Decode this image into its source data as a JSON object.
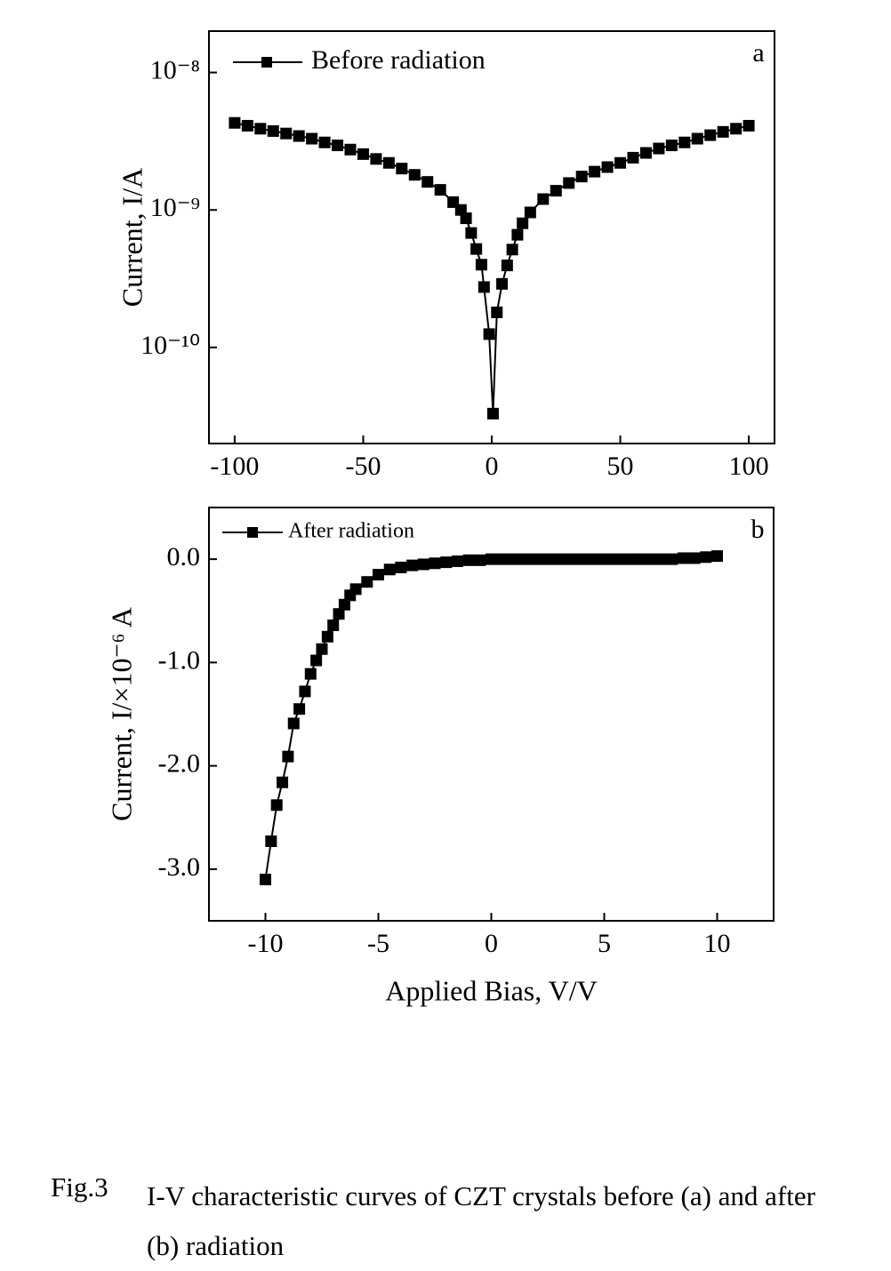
{
  "chart_data": [
    {
      "type": "line",
      "yscale": "log",
      "annotation": "a",
      "xlim": [
        -110,
        110
      ],
      "xticks": [
        -100,
        -50,
        0,
        50,
        100
      ],
      "ylim": [
        2e-11,
        2e-08
      ],
      "yticks": [
        {
          "value": 1e-08,
          "label": "10⁻⁸"
        },
        {
          "value": 1e-09,
          "label": "10⁻⁹"
        },
        {
          "value": 1e-10,
          "label": "10⁻¹⁰"
        }
      ],
      "ylabel": "Current, I/A",
      "legend": "upper left",
      "x": [
        -100,
        -95,
        -90,
        -85,
        -80,
        -75,
        -70,
        -65,
        -60,
        -55,
        -50,
        -45,
        -40,
        -35,
        -30,
        -25,
        -20,
        -15,
        -12,
        -10,
        -8,
        -6,
        -4,
        -3,
        -1,
        0.5,
        2,
        4,
        6,
        8,
        10,
        12,
        15,
        20,
        25,
        30,
        35,
        40,
        45,
        50,
        55,
        60,
        65,
        70,
        75,
        80,
        85,
        90,
        95,
        100
      ],
      "series": [
        {
          "name": "Before radiation",
          "color": "#000000",
          "values": [
            4.3e-09,
            4.1e-09,
            3.9e-09,
            3.75e-09,
            3.6e-09,
            3.45e-09,
            3.3e-09,
            3.1e-09,
            2.95e-09,
            2.75e-09,
            2.55e-09,
            2.35e-09,
            2.2e-09,
            2e-09,
            1.8e-09,
            1.6e-09,
            1.4e-09,
            1.14e-09,
            1e-09,
            8.7e-10,
            6.8e-10,
            5.2e-10,
            4e-10,
            2.75e-10,
            1.25e-10,
            3.3e-11,
            1.8e-10,
            2.9e-10,
            3.95e-10,
            5.15e-10,
            6.6e-10,
            8e-10,
            9.6e-10,
            1.2e-09,
            1.38e-09,
            1.57e-09,
            1.75e-09,
            1.9e-09,
            2.05e-09,
            2.2e-09,
            2.4e-09,
            2.6e-09,
            2.8e-09,
            2.95e-09,
            3.1e-09,
            3.3e-09,
            3.5e-09,
            3.7e-09,
            3.9e-09,
            4.1e-09
          ]
        }
      ]
    },
    {
      "type": "line",
      "annotation": "b",
      "xlim": [
        -12.5,
        12.5
      ],
      "xticks": [
        -10,
        -5,
        0,
        5,
        10
      ],
      "ylim": [
        -3.5,
        0.5
      ],
      "yticks": [
        {
          "value": 0,
          "label": "0.0"
        },
        {
          "value": -1,
          "label": "-1.0"
        },
        {
          "value": -2,
          "label": "-2.0"
        },
        {
          "value": -3,
          "label": "-3.0"
        }
      ],
      "ylabel": "Current, I/×10⁻⁶ A",
      "xlabel": "Applied Bias, V/V",
      "legend": "upper left",
      "x": [
        -10,
        -9.75,
        -9.5,
        -9.25,
        -9,
        -8.75,
        -8.5,
        -8.25,
        -8,
        -7.75,
        -7.5,
        -7.25,
        -7,
        -6.75,
        -6.5,
        -6.25,
        -6,
        -5.5,
        -5,
        -4.5,
        -4,
        -3.5,
        -3,
        -2.5,
        -2,
        -1.5,
        -1,
        -0.5,
        0,
        0.5,
        1,
        1.5,
        2,
        2.5,
        3,
        3.5,
        4,
        4.5,
        5,
        5.5,
        6,
        6.5,
        7,
        7.5,
        8,
        8.5,
        9,
        9.5,
        10
      ],
      "series": [
        {
          "name": "After radiation",
          "color": "#000000",
          "values": [
            -3.1,
            -2.73,
            -2.38,
            -2.16,
            -1.91,
            -1.59,
            -1.45,
            -1.28,
            -1.11,
            -0.98,
            -0.87,
            -0.75,
            -0.64,
            -0.53,
            -0.44,
            -0.35,
            -0.29,
            -0.22,
            -0.15,
            -0.1,
            -0.08,
            -0.06,
            -0.05,
            -0.04,
            -0.03,
            -0.02,
            -0.01,
            -0.01,
            0,
            0,
            0,
            0,
            0,
            0,
            0,
            0,
            0,
            0,
            0,
            0,
            0,
            0,
            0,
            0,
            0,
            0.01,
            0.01,
            0.02,
            0.03
          ]
        }
      ]
    }
  ],
  "caption": {
    "label": "Fig.3",
    "text": "I-V characteristic curves of CZT crystals before (a) and after (b) radiation"
  }
}
